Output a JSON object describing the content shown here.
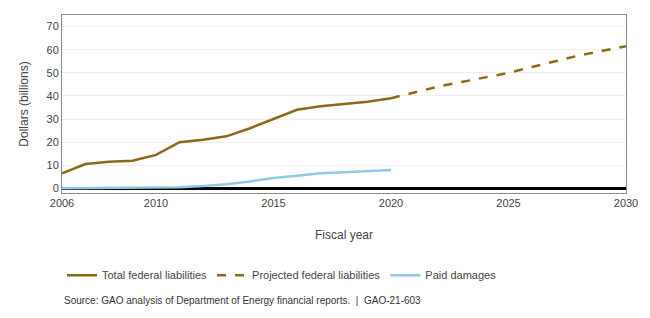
{
  "chart_data": {
    "type": "line",
    "ylabel": "Dollars (billions)",
    "xlabel": "Fiscal year",
    "annotations": [
      "Source: GAO analysis of Department of Energy financial reports.  |  GAO-21-603"
    ],
    "series": [
      {
        "name": "Total federal liabilities",
        "color": "#8B6914",
        "line_style": "solid",
        "x": [
          2006,
          2007,
          2008,
          2009,
          2010,
          2011,
          2012,
          2013,
          2014,
          2015,
          2016,
          2017,
          2018,
          2019,
          2020
        ],
        "values": [
          6.5,
          10.5,
          11.5,
          12.0,
          14.5,
          20.0,
          21.0,
          22.5,
          26.0,
          30.0,
          34.0,
          35.5,
          36.5,
          37.5,
          39.0
        ]
      },
      {
        "name": "Projected federal liabilities",
        "color": "#8B6914",
        "line_style": "dashed",
        "x": [
          2020,
          2021,
          2022,
          2023,
          2024,
          2025,
          2026,
          2027,
          2028,
          2029,
          2030
        ],
        "values": [
          39.0,
          41.5,
          44.0,
          46.0,
          48.0,
          50.0,
          52.5,
          55.0,
          57.5,
          59.5,
          61.5
        ]
      },
      {
        "name": "Paid damages",
        "color": "#8ECAE6",
        "line_style": "solid",
        "x": [
          2006,
          2007,
          2008,
          2009,
          2010,
          2011,
          2012,
          2013,
          2014,
          2015,
          2016,
          2017,
          2018,
          2019,
          2020
        ],
        "values": [
          0.05,
          0.1,
          0.15,
          0.2,
          0.3,
          0.5,
          1.0,
          1.8,
          3.0,
          4.5,
          5.5,
          6.5,
          7.0,
          7.5,
          8.0
        ]
      }
    ],
    "xlim": [
      2006,
      2030
    ],
    "xticks": [
      2006,
      2010,
      2015,
      2020,
      2025,
      2030
    ],
    "ylim": [
      -2,
      75
    ],
    "yticks": [
      0,
      10,
      20,
      30,
      40,
      50,
      60,
      70
    ],
    "grid": true,
    "legend": "bottom"
  }
}
